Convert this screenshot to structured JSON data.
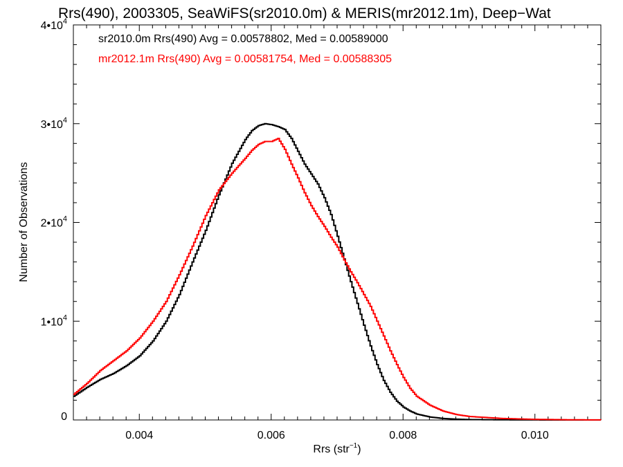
{
  "chart_data": {
    "type": "line",
    "title": "Rrs(490), 2003305, SeaWiFS(sr2010.0m) & MERIS(mr2012.1m), Deep−Wat",
    "xlabel": "Rrs (str",
    "xlabel_sup": "−1",
    "xlabel_end": ")",
    "ylabel": "Number of Observations",
    "xlim": [
      0.003,
      0.011
    ],
    "ylim": [
      0,
      40000
    ],
    "grid": false,
    "step": true,
    "x_ticks": [
      {
        "value": 0.004,
        "label": "0.004"
      },
      {
        "value": 0.006,
        "label": "0.006"
      },
      {
        "value": 0.008,
        "label": "0.008"
      },
      {
        "value": 0.01,
        "label": "0.010"
      }
    ],
    "y_ticks": [
      {
        "value": 0,
        "mant": "0",
        "exp": ""
      },
      {
        "value": 10000,
        "mant": "1•10",
        "exp": "4"
      },
      {
        "value": 20000,
        "mant": "2•10",
        "exp": "4"
      },
      {
        "value": 30000,
        "mant": "3•10",
        "exp": "4"
      },
      {
        "value": 40000,
        "mant": "4•10",
        "exp": "4"
      }
    ],
    "annotations": [
      {
        "text": "sr2010.0m Rrs(490) Avg = 0.00578802, Med = 0.00589000",
        "color": "#000000"
      },
      {
        "text": "mr2012.1m Rrs(490) Avg = 0.00581754, Med = 0.00588305",
        "color": "#ff0000"
      }
    ],
    "series": [
      {
        "color": "#000000",
        "x": [
          0.003,
          0.0032,
          0.0034,
          0.0036,
          0.0038,
          0.004,
          0.0042,
          0.0044,
          0.0046,
          0.0048,
          0.005,
          0.0052,
          0.0054,
          0.0056,
          0.0057,
          0.0058,
          0.0059,
          0.006,
          0.0061,
          0.0062,
          0.0063,
          0.0064,
          0.0065,
          0.0066,
          0.0067,
          0.0068,
          0.0069,
          0.007,
          0.0071,
          0.0072,
          0.0073,
          0.0074,
          0.0075,
          0.0076,
          0.0077,
          0.0078,
          0.0079,
          0.008,
          0.0081,
          0.0082,
          0.0084,
          0.0086,
          0.0088,
          0.009,
          0.0095,
          0.01,
          0.0105,
          0.011
        ],
        "y": [
          2400,
          3300,
          4100,
          4700,
          5500,
          6500,
          8000,
          10000,
          12700,
          16000,
          19200,
          22800,
          26000,
          28400,
          29300,
          29800,
          30000,
          29900,
          29700,
          29400,
          28500,
          27200,
          25900,
          24900,
          23900,
          22500,
          20800,
          18600,
          16300,
          14000,
          11800,
          9600,
          7500,
          5600,
          4000,
          2800,
          1900,
          1300,
          900,
          600,
          300,
          150,
          80,
          40,
          15,
          5,
          2,
          0
        ]
      },
      {
        "color": "#ff0000",
        "x": [
          0.003,
          0.0032,
          0.0034,
          0.0036,
          0.0038,
          0.004,
          0.0042,
          0.0044,
          0.0046,
          0.0048,
          0.005,
          0.0052,
          0.0054,
          0.0056,
          0.0057,
          0.0058,
          0.0059,
          0.006,
          0.0061,
          0.0062,
          0.0063,
          0.0064,
          0.0065,
          0.0066,
          0.0067,
          0.0068,
          0.0069,
          0.007,
          0.0071,
          0.0072,
          0.0073,
          0.0074,
          0.0075,
          0.0076,
          0.0077,
          0.0078,
          0.0079,
          0.008,
          0.0081,
          0.0082,
          0.0084,
          0.0086,
          0.0088,
          0.009,
          0.0095,
          0.01,
          0.0105,
          0.011
        ],
        "y": [
          2600,
          3700,
          5000,
          6000,
          7000,
          8300,
          10000,
          12000,
          14700,
          17600,
          20700,
          23300,
          25000,
          26500,
          27300,
          27900,
          28200,
          28200,
          28500,
          27400,
          25900,
          24500,
          23000,
          21700,
          20600,
          19600,
          18500,
          17500,
          16200,
          15000,
          13900,
          12700,
          11500,
          10000,
          8500,
          7000,
          5600,
          4300,
          3200,
          2400,
          1500,
          900,
          550,
          350,
          150,
          60,
          20,
          5
        ]
      }
    ]
  }
}
